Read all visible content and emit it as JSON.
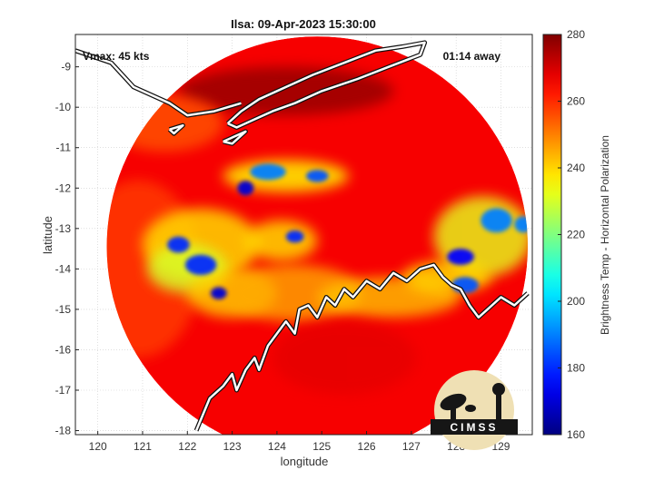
{
  "chart_data": {
    "type": "heatmap",
    "title": "Ilsa: 09-Apr-2023 15:30:00",
    "annotations": {
      "intensity": "Vmax: 45 kts",
      "time_offset": "01:14 away"
    },
    "xlabel": "longitude",
    "ylabel": "latitude",
    "xlim": [
      119.5,
      129.7
    ],
    "ylim": [
      -18.1,
      -8.2
    ],
    "xticks": [
      120,
      121,
      122,
      123,
      124,
      125,
      126,
      127,
      128,
      129
    ],
    "yticks": [
      -9,
      -10,
      -11,
      -12,
      -13,
      -14,
      -15,
      -16,
      -17,
      -18
    ],
    "grid": true,
    "colorbar": {
      "label": "Brightness Temp - Horizontal Polarization",
      "range": [
        160,
        280
      ],
      "ticks": [
        280,
        260,
        240,
        220,
        200,
        180,
        160
      ],
      "colormap": "jet"
    },
    "swath": {
      "center": [
        124.9,
        -13.45
      ],
      "radius_deg": 4.7
    },
    "background_value": 266,
    "features": [
      {
        "lon": 124.2,
        "lat": -9.6,
        "rx": 2.4,
        "ry": 0.6,
        "value": 278
      },
      {
        "lon": 121.5,
        "lat": -10.4,
        "rx": 1.3,
        "ry": 0.7,
        "value": 255
      },
      {
        "lon": 120.9,
        "lat": -14.0,
        "rx": 1.4,
        "ry": 2.2,
        "value": 258
      },
      {
        "lon": 122.3,
        "lat": -13.4,
        "rx": 1.3,
        "ry": 0.9,
        "value": 238
      },
      {
        "lon": 122.0,
        "lat": -14.0,
        "rx": 0.9,
        "ry": 0.6,
        "value": 230
      },
      {
        "lon": 123.0,
        "lat": -14.6,
        "rx": 1.0,
        "ry": 0.6,
        "value": 240
      },
      {
        "lon": 124.4,
        "lat": -14.6,
        "rx": 1.5,
        "ry": 0.7,
        "value": 245
      },
      {
        "lon": 124.2,
        "lat": -11.7,
        "rx": 1.4,
        "ry": 0.4,
        "value": 235
      },
      {
        "lon": 124.1,
        "lat": -13.3,
        "rx": 0.8,
        "ry": 0.5,
        "value": 238
      },
      {
        "lon": 126.5,
        "lat": -14.7,
        "rx": 1.6,
        "ry": 0.5,
        "value": 242
      },
      {
        "lon": 128.6,
        "lat": -13.2,
        "rx": 1.1,
        "ry": 1.0,
        "value": 232
      },
      {
        "lon": 127.8,
        "lat": -14.2,
        "rx": 1.0,
        "ry": 0.4,
        "value": 238
      },
      {
        "lon": 125.5,
        "lat": -16.2,
        "rx": 1.6,
        "ry": 0.9,
        "value": 268
      },
      {
        "lon": 123.8,
        "lat": -11.6,
        "rx": 0.4,
        "ry": 0.2,
        "value": 190
      },
      {
        "lon": 124.9,
        "lat": -11.7,
        "rx": 0.25,
        "ry": 0.15,
        "value": 185
      },
      {
        "lon": 123.3,
        "lat": -12.0,
        "rx": 0.18,
        "ry": 0.18,
        "value": 170
      },
      {
        "lon": 121.8,
        "lat": -13.4,
        "rx": 0.25,
        "ry": 0.2,
        "value": 180
      },
      {
        "lon": 122.3,
        "lat": -13.9,
        "rx": 0.35,
        "ry": 0.25,
        "value": 180
      },
      {
        "lon": 122.7,
        "lat": -14.6,
        "rx": 0.18,
        "ry": 0.15,
        "value": 170
      },
      {
        "lon": 124.4,
        "lat": -13.2,
        "rx": 0.2,
        "ry": 0.15,
        "value": 180
      },
      {
        "lon": 128.1,
        "lat": -13.7,
        "rx": 0.3,
        "ry": 0.2,
        "value": 175
      },
      {
        "lon": 128.9,
        "lat": -12.8,
        "rx": 0.35,
        "ry": 0.3,
        "value": 190
      },
      {
        "lon": 129.5,
        "lat": -12.9,
        "rx": 0.2,
        "ry": 0.2,
        "value": 190
      },
      {
        "lon": 128.2,
        "lat": -14.4,
        "rx": 0.3,
        "ry": 0.2,
        "value": 185
      }
    ],
    "coastlines": [
      {
        "name": "timor",
        "lon": [
          122.9,
          123.2,
          123.6,
          124.2,
          124.8,
          125.5,
          126.2,
          126.8,
          127.3,
          127.2,
          126.5,
          125.8,
          125.0,
          124.4,
          123.9,
          123.5,
          123.1,
          122.9
        ],
        "lat": [
          -10.4,
          -10.1,
          -9.8,
          -9.5,
          -9.2,
          -8.9,
          -8.6,
          -8.5,
          -8.4,
          -8.7,
          -9.0,
          -9.3,
          -9.6,
          -9.9,
          -10.1,
          -10.3,
          -10.5,
          -10.4
        ]
      },
      {
        "name": "rote",
        "lon": [
          122.8,
          123.3,
          123.0,
          122.8
        ],
        "lat": [
          -10.85,
          -10.6,
          -10.9,
          -10.85
        ]
      },
      {
        "name": "sawu",
        "lon": [
          121.6,
          121.9,
          121.7,
          121.6
        ],
        "lat": [
          -10.55,
          -10.45,
          -10.65,
          -10.55
        ]
      },
      {
        "name": "flores_sumba",
        "lon": [
          119.5,
          120.3,
          120.8,
          121.6,
          122.0,
          122.6,
          123.2
        ],
        "lat": [
          -8.6,
          -8.9,
          -9.5,
          -9.9,
          -10.2,
          -10.1,
          -9.9
        ]
      },
      {
        "name": "australia_nw",
        "lon": [
          122.2,
          122.5,
          122.8,
          123.0,
          123.1,
          123.3,
          123.5,
          123.6,
          123.8,
          124.0,
          124.2,
          124.4,
          124.5,
          124.7,
          124.9,
          125.1,
          125.3,
          125.5,
          125.7,
          126.0,
          126.3,
          126.6,
          126.9,
          127.2,
          127.5,
          127.7,
          127.9,
          128.1,
          128.3,
          128.5,
          128.7,
          129.0,
          129.3,
          129.6
        ],
        "lat": [
          -18.0,
          -17.2,
          -16.9,
          -16.6,
          -17.0,
          -16.5,
          -16.2,
          -16.5,
          -15.9,
          -15.6,
          -15.3,
          -15.6,
          -15.0,
          -14.9,
          -15.2,
          -14.7,
          -14.9,
          -14.5,
          -14.7,
          -14.3,
          -14.5,
          -14.1,
          -14.3,
          -14.0,
          -13.9,
          -14.2,
          -14.4,
          -14.5,
          -14.9,
          -15.2,
          -15.0,
          -14.7,
          -14.9,
          -14.6
        ]
      }
    ]
  }
}
